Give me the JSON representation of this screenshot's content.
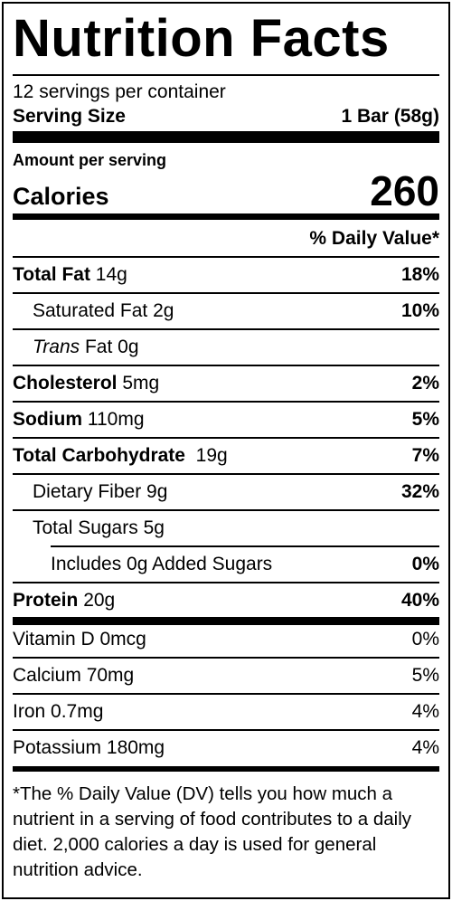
{
  "title": "Nutrition Facts",
  "servings_per_container": "12 servings per container",
  "serving_size": {
    "label": "Serving Size",
    "value": "1 Bar (58g)"
  },
  "amount_per_serving": "Amount per serving",
  "calories": {
    "label": "Calories",
    "value": "260"
  },
  "dv_header": "% Daily Value*",
  "nutrients": [
    {
      "name": "Total Fat",
      "amount": "14g",
      "dv": "18%"
    },
    {
      "name": "Saturated Fat",
      "amount": "2g",
      "dv": "10%"
    },
    {
      "name_italic": "Trans",
      "name": "Fat",
      "amount": "0g",
      "dv": ""
    },
    {
      "name": "Cholesterol",
      "amount": "5mg",
      "dv": "2%"
    },
    {
      "name": "Sodium",
      "amount": "110mg",
      "dv": "5%"
    },
    {
      "name": "Total Carbohydrate",
      "amount": "19g",
      "dv": "7%"
    },
    {
      "name": "Dietary Fiber",
      "amount": "9g",
      "dv": "32%"
    },
    {
      "name": "Total Sugars",
      "amount": "5g",
      "dv": ""
    },
    {
      "name": "Includes 0g Added Sugars",
      "amount": "",
      "dv": "0%"
    },
    {
      "name": "Protein",
      "amount": "20g",
      "dv": "40%"
    }
  ],
  "vitamins": [
    {
      "name": "Vitamin D",
      "amount": "0mcg",
      "dv": "0%"
    },
    {
      "name": "Calcium",
      "amount": "70mg",
      "dv": "5%"
    },
    {
      "name": "Iron",
      "amount": "0.7mg",
      "dv": "4%"
    },
    {
      "name": "Potassium",
      "amount": "180mg",
      "dv": "4%"
    }
  ],
  "footnote": "*The % Daily Value (DV) tells you how much a nutrient in a serving of food contributes to a daily diet. 2,000 calories a day is used for general nutrition advice."
}
